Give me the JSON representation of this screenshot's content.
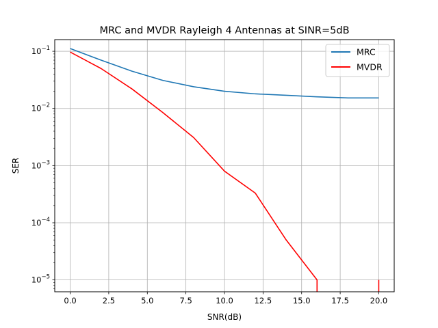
{
  "chart_data": {
    "type": "line",
    "title": "MRC and MVDR Rayleigh 4 Antennas at SINR=5dB",
    "xlabel": "SNR(dB)",
    "ylabel": "SER",
    "xlim": [
      -1,
      21
    ],
    "ylim": [
      6.2e-06,
      0.16
    ],
    "yscale": "log",
    "grid": true,
    "legend_position": "top-right",
    "x_ticks": [
      {
        "value": 0,
        "label": "0.0"
      },
      {
        "value": 2.5,
        "label": "2.5"
      },
      {
        "value": 5,
        "label": "5.0"
      },
      {
        "value": 7.5,
        "label": "7.5"
      },
      {
        "value": 10,
        "label": "10.0"
      },
      {
        "value": 12.5,
        "label": "12.5"
      },
      {
        "value": 15,
        "label": "15.0"
      },
      {
        "value": 17.5,
        "label": "17.5"
      },
      {
        "value": 20,
        "label": "20.0"
      }
    ],
    "y_ticks": [
      {
        "value": 0.1,
        "base": "10",
        "exp": "−1"
      },
      {
        "value": 0.01,
        "base": "10",
        "exp": "−2"
      },
      {
        "value": 0.001,
        "base": "10",
        "exp": "−3"
      },
      {
        "value": 0.0001,
        "base": "10",
        "exp": "−4"
      },
      {
        "value": 1e-05,
        "base": "10",
        "exp": "−5"
      }
    ],
    "series": [
      {
        "name": "MRC",
        "color": "#1f77b4",
        "x": [
          0,
          2,
          4,
          6,
          8,
          10,
          12,
          14,
          16,
          18,
          20
        ],
        "y": [
          0.112,
          0.07,
          0.045,
          0.031,
          0.024,
          0.02,
          0.018,
          0.017,
          0.016,
          0.0153,
          0.0153
        ]
      },
      {
        "name": "MVDR",
        "color": "#ff0000",
        "x": [
          0,
          2,
          4,
          6,
          8,
          10,
          12,
          14,
          16,
          16,
          null,
          20,
          20
        ],
        "y": [
          0.097,
          0.05,
          0.022,
          0.0085,
          0.0031,
          0.0008,
          0.00033,
          5e-05,
          1e-05,
          5e-06,
          null,
          5e-06,
          1e-05
        ]
      }
    ]
  }
}
